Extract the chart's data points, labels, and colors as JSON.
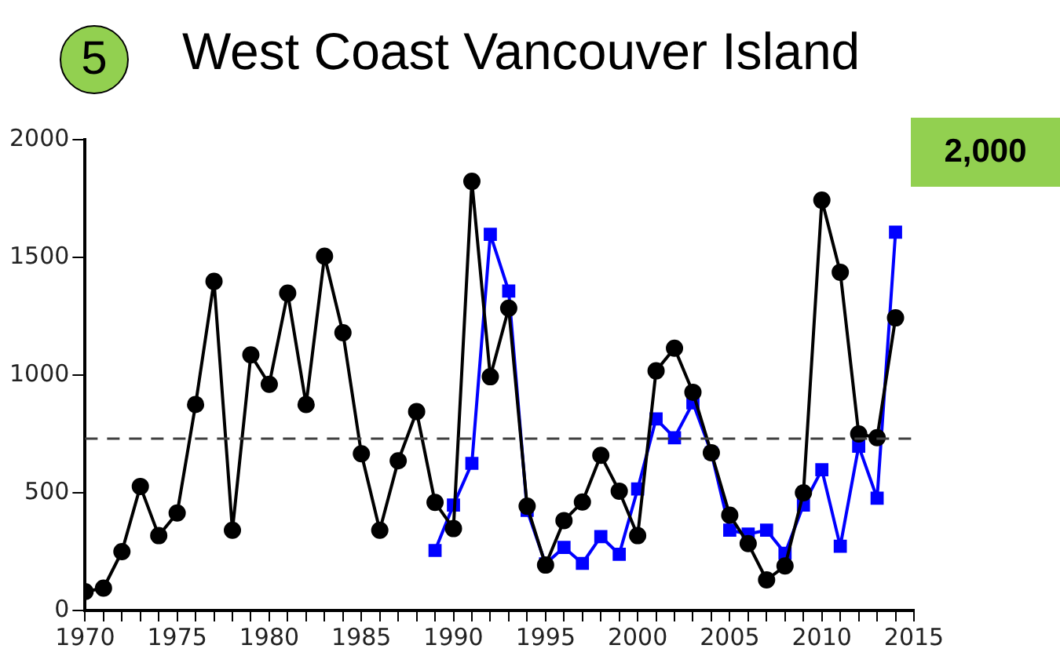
{
  "chart_data": {
    "type": "line",
    "title": "West Coast Vancouver Island",
    "annotations": [
      "5",
      "2,000"
    ],
    "xlim": [
      1970,
      2015
    ],
    "xticks": [
      1970,
      {
        "value": 1971,
        "label": null
      },
      {
        "value": 1972,
        "label": null
      },
      {
        "value": 1973,
        "label": null
      },
      {
        "value": 1974,
        "label": null
      },
      1975,
      {
        "value": 1976,
        "label": null
      },
      {
        "value": 1977,
        "label": null
      },
      {
        "value": 1978,
        "label": null
      },
      {
        "value": 1979,
        "label": null
      },
      1980,
      {
        "value": 1981,
        "label": null
      },
      {
        "value": 1982,
        "label": null
      },
      {
        "value": 1983,
        "label": null
      },
      {
        "value": 1984,
        "label": null
      },
      1985,
      {
        "value": 1986,
        "label": null
      },
      {
        "value": 1987,
        "label": null
      },
      {
        "value": 1988,
        "label": null
      },
      {
        "value": 1989,
        "label": null
      },
      1990,
      {
        "value": 1991,
        "label": null
      },
      {
        "value": 1992,
        "label": null
      },
      {
        "value": 1993,
        "label": null
      },
      {
        "value": 1994,
        "label": null
      },
      1995,
      {
        "value": 1996,
        "label": null
      },
      {
        "value": 1997,
        "label": null
      },
      {
        "value": 1998,
        "label": null
      },
      {
        "value": 1999,
        "label": null
      },
      2000,
      {
        "value": 2001,
        "label": null
      },
      {
        "value": 2002,
        "label": null
      },
      {
        "value": 2003,
        "label": null
      },
      {
        "value": 2004,
        "label": null
      },
      2005,
      {
        "value": 2006,
        "label": null
      },
      {
        "value": 2007,
        "label": null
      },
      {
        "value": 2008,
        "label": null
      },
      {
        "value": 2009,
        "label": null
      },
      2010,
      {
        "value": 2011,
        "label": null
      },
      {
        "value": 2012,
        "label": null
      },
      {
        "value": 2013,
        "label": null
      },
      {
        "value": 2014,
        "label": null
      },
      2015
    ],
    "ylim": [
      0,
      2000
    ],
    "yticks": [
      0,
      500,
      1000,
      1500,
      2000
    ],
    "grid": false,
    "legend": false,
    "ref_lines": [
      {
        "axis": "y",
        "value": 730,
        "color": "#404040",
        "line_style": "dashed"
      }
    ],
    "series": [
      {
        "color": "#000000",
        "marker": "circle",
        "x": [
          1970,
          1971,
          1972,
          1973,
          1974,
          1975,
          1976,
          1977,
          1978,
          1979,
          1980,
          1981,
          1982,
          1983,
          1984,
          1985,
          1986,
          1987,
          1988,
          1989,
          1990,
          1991,
          1992,
          1993,
          1994,
          1995,
          1996,
          1997,
          1998,
          1999,
          2000,
          2001,
          2002,
          2003,
          2004,
          2005,
          2006,
          2007,
          2008,
          2009,
          2010,
          2011,
          2012,
          2013,
          2014
        ],
        "values": [
          80,
          95,
          250,
          527,
          318,
          414,
          875,
          1398,
          341,
          1086,
          961,
          1348,
          875,
          1505,
          1180,
          666,
          341,
          636,
          845,
          459,
          348,
          1823,
          993,
          1284,
          443,
          193,
          382,
          461,
          659,
          507,
          318,
          1018,
          1114,
          927,
          670,
          405,
          284,
          130,
          189,
          500,
          1743,
          1437,
          750,
          734,
          1243
        ]
      },
      {
        "color": "#0000ff",
        "marker": "square",
        "x": [
          1989,
          1990,
          1991,
          1992,
          1993,
          1994,
          1995,
          1996,
          1997,
          1998,
          1999,
          2000,
          2001,
          2002,
          2003,
          2004,
          2005,
          2006,
          2007,
          2008,
          2009,
          2010,
          2011,
          2012,
          2013,
          2014
        ],
        "values": [
          255,
          448,
          625,
          1598,
          1357,
          425,
          198,
          268,
          200,
          314,
          239,
          516,
          814,
          734,
          882,
          670,
          341,
          325,
          341,
          243,
          448,
          598,
          273,
          698,
          477,
          1607
        ]
      }
    ]
  }
}
